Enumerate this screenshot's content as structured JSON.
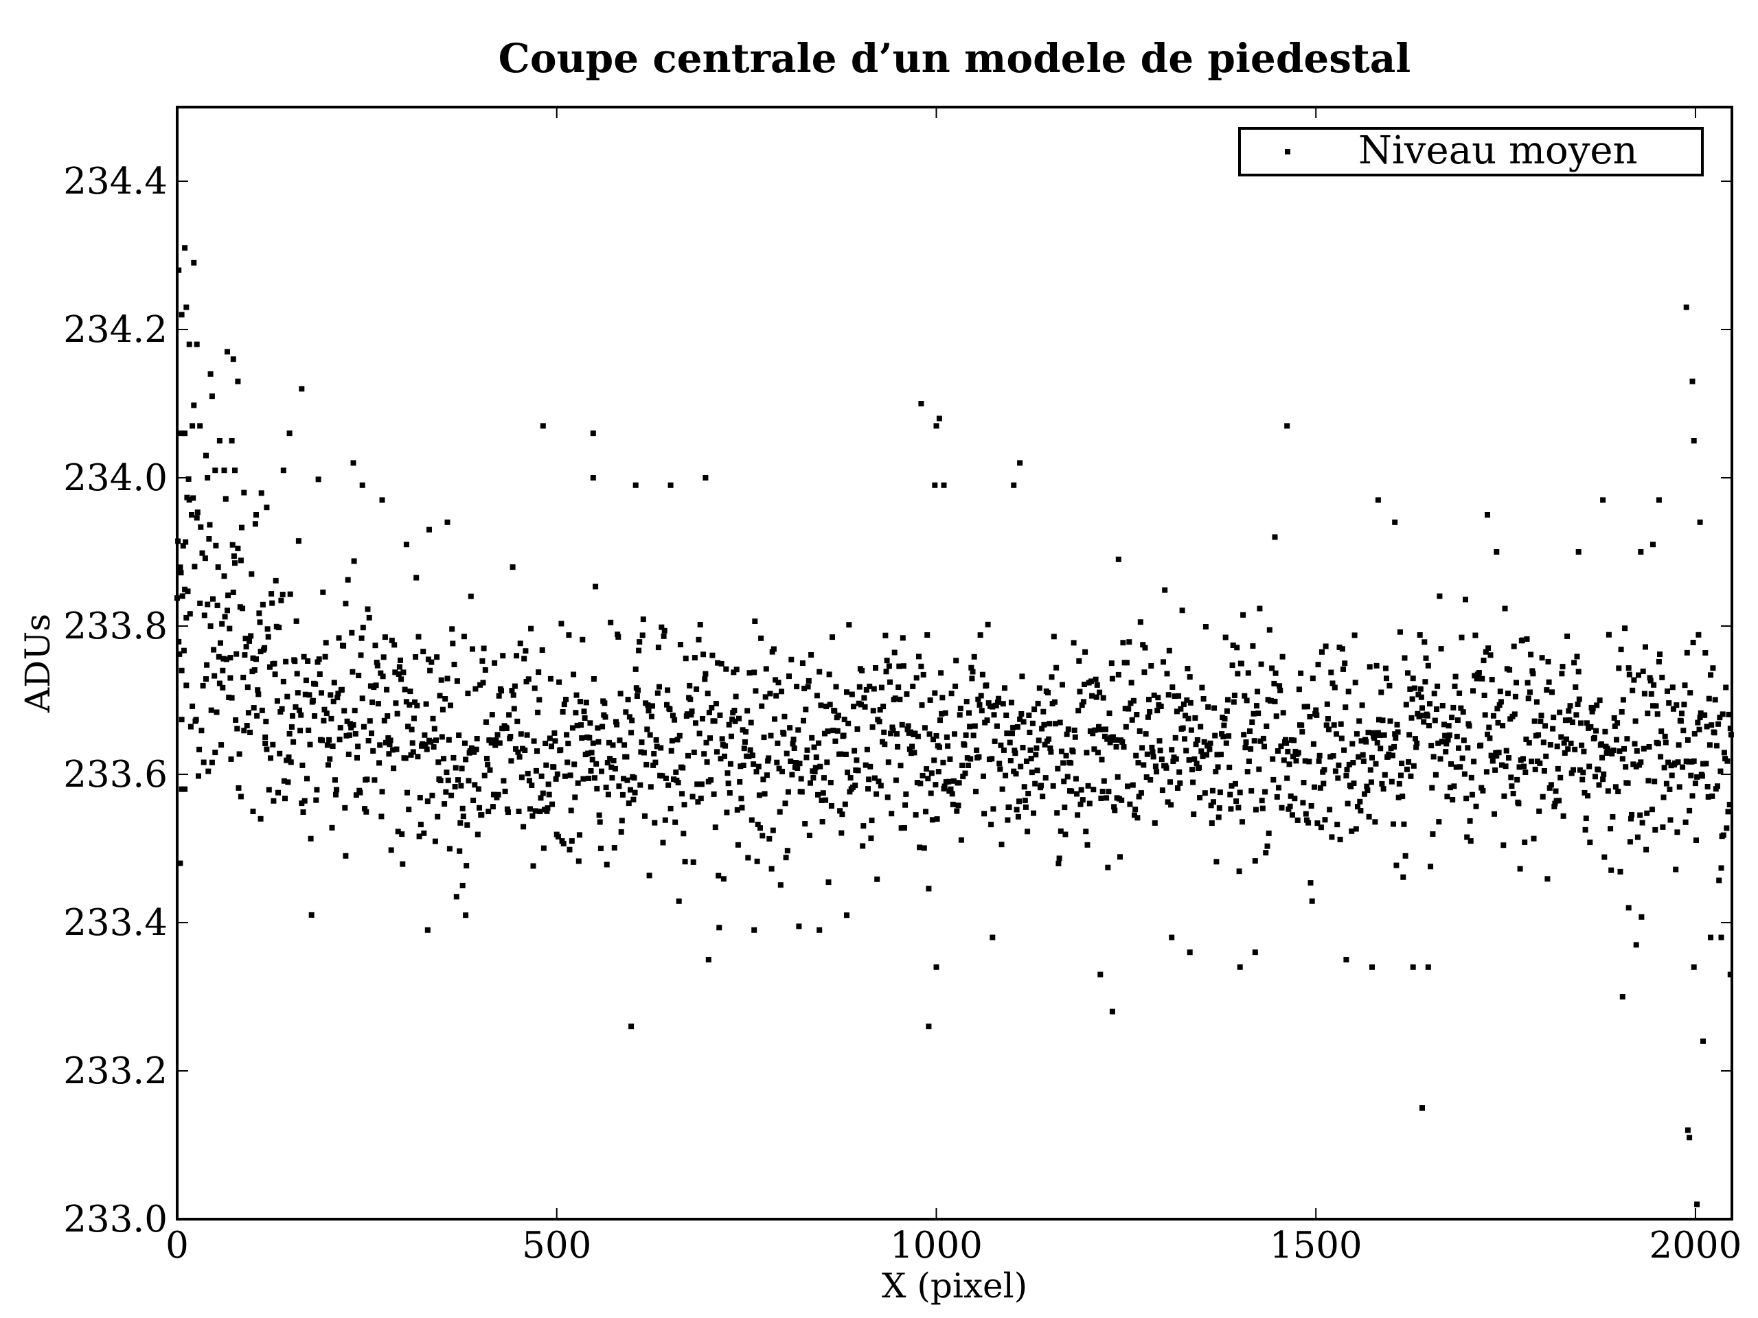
{
  "chart_data": {
    "type": "scatter",
    "title": "Coupe centrale d’un modele de piedestal",
    "xlabel": "X (pixel)",
    "ylabel": "ADUs",
    "xlim": [
      0,
      2048
    ],
    "ylim": [
      233.0,
      234.5
    ],
    "xticks": [
      0,
      500,
      1000,
      1500,
      2000
    ],
    "xtick_labels": [
      "0",
      "500",
      "1000",
      "1500",
      "2000"
    ],
    "yticks": [
      233.0,
      233.2,
      233.4,
      233.6,
      233.8,
      234.0,
      234.2,
      234.4
    ],
    "ytick_labels": [
      "233.0",
      "233.2",
      "233.4",
      "233.6",
      "233.8",
      "234.0",
      "234.2",
      "234.4"
    ],
    "grid": false,
    "legend": {
      "position": "top-right",
      "entries": [
        "Niveau moyen"
      ]
    },
    "series": [
      {
        "name": "Niveau moyen",
        "marker": "square",
        "color": "#000000",
        "points": [
          [
            2,
            234.28
          ],
          [
            6,
            234.22
          ],
          [
            10,
            234.31
          ],
          [
            12,
            234.23
          ],
          [
            16,
            234.18
          ],
          [
            22,
            234.29
          ],
          [
            26,
            234.18
          ],
          [
            4,
            234.06
          ],
          [
            10,
            234.06
          ],
          [
            20,
            234.07
          ],
          [
            30,
            234.07
          ],
          [
            38,
            234.03
          ],
          [
            44,
            234.14
          ],
          [
            46,
            234.11
          ],
          [
            66,
            234.17
          ],
          [
            74,
            234.16
          ],
          [
            80,
            234.13
          ],
          [
            164,
            234.12
          ],
          [
            6,
            233.74
          ],
          [
            12,
            233.72
          ],
          [
            6,
            233.58
          ],
          [
            10,
            233.58
          ],
          [
            4,
            233.48
          ],
          [
            40,
            234.0
          ],
          [
            50,
            234.01
          ],
          [
            62,
            234.01
          ],
          [
            76,
            234.01
          ],
          [
            88,
            233.98
          ],
          [
            104,
            233.95
          ],
          [
            118,
            233.96
          ],
          [
            56,
            234.05
          ],
          [
            72,
            234.05
          ],
          [
            148,
            234.06
          ],
          [
            140,
            234.01
          ],
          [
            60,
            233.74
          ],
          [
            70,
            233.73
          ],
          [
            100,
            233.55
          ],
          [
            110,
            233.54
          ],
          [
            84,
            233.57
          ],
          [
            116,
            233.65
          ],
          [
            126,
            233.64
          ],
          [
            222,
            233.49
          ],
          [
            232,
            234.02
          ],
          [
            244,
            233.99
          ],
          [
            270,
            233.97
          ],
          [
            548,
            234.06
          ],
          [
            482,
            234.07
          ],
          [
            548,
            234.0
          ],
          [
            604,
            233.99
          ],
          [
            650,
            233.99
          ],
          [
            696,
            234.0
          ],
          [
            598,
            233.26
          ],
          [
            302,
            233.91
          ],
          [
            332,
            233.93
          ],
          [
            356,
            233.94
          ],
          [
            330,
            233.39
          ],
          [
            376,
            233.45
          ],
          [
            380,
            233.41
          ],
          [
            700,
            233.35
          ],
          [
            760,
            233.39
          ],
          [
            846,
            233.39
          ],
          [
            882,
            233.41
          ],
          [
            980,
            234.1
          ],
          [
            1000,
            234.07
          ],
          [
            1004,
            234.08
          ],
          [
            998,
            233.99
          ],
          [
            1010,
            233.99
          ],
          [
            1110,
            234.02
          ],
          [
            1102,
            233.99
          ],
          [
            990,
            233.26
          ],
          [
            1000,
            233.34
          ],
          [
            1074,
            233.38
          ],
          [
            1216,
            233.33
          ],
          [
            1232,
            233.28
          ],
          [
            1240,
            233.89
          ],
          [
            1462,
            234.07
          ],
          [
            1446,
            233.92
          ],
          [
            1604,
            233.94
          ],
          [
            1582,
            233.97
          ],
          [
            1640,
            233.15
          ],
          [
            1628,
            233.34
          ],
          [
            1648,
            233.34
          ],
          [
            1878,
            233.97
          ],
          [
            1904,
            233.3
          ],
          [
            1988,
            234.23
          ],
          [
            1996,
            234.13
          ],
          [
            1998,
            234.05
          ],
          [
            2006,
            233.94
          ],
          [
            1990,
            233.12
          ],
          [
            1992,
            233.11
          ],
          [
            2002,
            233.02
          ],
          [
            2010,
            233.24
          ],
          [
            1998,
            233.34
          ],
          [
            2020,
            233.38
          ],
          [
            2034,
            233.38
          ],
          [
            2046,
            233.33
          ],
          [
            1726,
            233.95
          ],
          [
            1738,
            233.9
          ],
          [
            1952,
            233.97
          ],
          [
            1944,
            233.91
          ],
          [
            1928,
            233.9
          ],
          [
            1922,
            233.37
          ],
          [
            1912,
            233.42
          ],
          [
            1846,
            233.9
          ],
          [
            1400,
            233.34
          ],
          [
            1420,
            233.36
          ],
          [
            1334,
            233.36
          ],
          [
            1540,
            233.35
          ],
          [
            1574,
            233.34
          ],
          [
            1310,
            233.38
          ]
        ]
      }
    ]
  }
}
